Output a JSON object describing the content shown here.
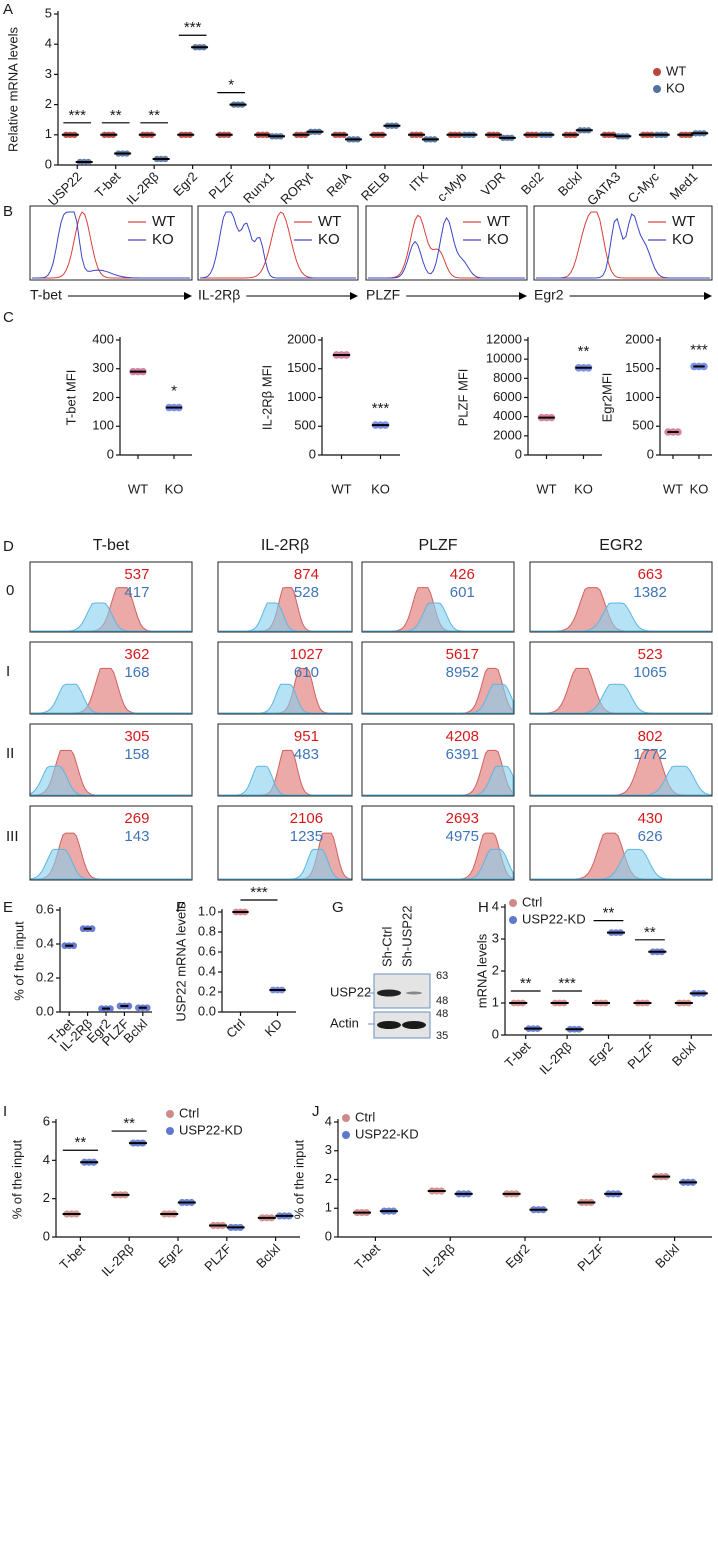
{
  "chart_data": [
    {
      "type": "dot",
      "panel": "A",
      "ylabel": "Relative mRNA levels",
      "categories": [
        "USP22",
        "T-bet",
        "IL-2Rβ",
        "Egr2",
        "PLZF",
        "Runx1",
        "RORγt",
        "RelA",
        "RELB",
        "ITK",
        "c-Myb",
        "VDR",
        "Bcl2",
        "Bclxl",
        "GATA3",
        "C-Myc",
        "Med1"
      ],
      "series": [
        {
          "name": "WT",
          "color": "#b8463f",
          "values": [
            1,
            1,
            1,
            1,
            1,
            1,
            1,
            1,
            1,
            1,
            1,
            1,
            1,
            1,
            1,
            1,
            1
          ]
        },
        {
          "name": "KO",
          "color": "#52739f",
          "values": [
            0.1,
            0.38,
            0.2,
            3.9,
            2.0,
            0.95,
            1.1,
            0.85,
            1.3,
            0.85,
            1.0,
            0.9,
            1.0,
            1.15,
            0.95,
            1.0,
            1.05
          ]
        }
      ],
      "ylim": [
        0,
        5
      ],
      "yticks": [
        0,
        1,
        2,
        3,
        4,
        5
      ],
      "legend": "right",
      "significance_bar": true,
      "annotations": [
        {
          "category": "USP22",
          "label": "***"
        },
        {
          "category": "T-bet",
          "label": "**"
        },
        {
          "category": "IL-2Rβ",
          "label": "**"
        },
        {
          "category": "Egr2",
          "label": "***"
        },
        {
          "category": "PLZF",
          "label": "*"
        }
      ]
    },
    {
      "type": "flow-histogram",
      "panel": "B",
      "x_labels": [
        "T-bet",
        "IL-2Rβ",
        "PLZF",
        "Egr2"
      ],
      "series": [
        {
          "name": "WT",
          "color": "#d9403a"
        },
        {
          "name": "KO",
          "color": "#3a45c8"
        }
      ]
    },
    {
      "type": "dot",
      "panel": "C",
      "ylabel": "T-bet MFI",
      "categories": [
        "WT",
        "KO"
      ],
      "values": [
        290,
        165
      ],
      "colors": [
        "#d2789a",
        "#6f86e3"
      ],
      "ylim": [
        0,
        400
      ],
      "yticks": [
        0,
        100,
        200,
        300,
        400
      ],
      "annotations": [
        {
          "category": "KO",
          "label": "*"
        }
      ]
    },
    {
      "type": "dot",
      "ylabel": "IL-2Rβ MFI",
      "categories": [
        "WT",
        "KO"
      ],
      "values": [
        1740,
        520
      ],
      "colors": [
        "#d2789a",
        "#6f86e3"
      ],
      "ylim": [
        0,
        2000
      ],
      "yticks": [
        0,
        500,
        1000,
        1500,
        2000
      ],
      "annotations": [
        {
          "category": "KO",
          "label": "***"
        }
      ]
    },
    {
      "type": "dot",
      "ylabel": "PLZF MFI",
      "categories": [
        "WT",
        "KO"
      ],
      "values": [
        3900,
        9100
      ],
      "colors": [
        "#d2789a",
        "#6f86e3"
      ],
      "ylim": [
        0,
        12000
      ],
      "yticks": [
        0,
        2000,
        4000,
        6000,
        8000,
        10000,
        12000
      ],
      "annotations": [
        {
          "category": "KO",
          "label": "**"
        }
      ]
    },
    {
      "type": "dot",
      "ylabel": "Egr2MFI",
      "categories": [
        "WT",
        "KO"
      ],
      "values": [
        400,
        1540
      ],
      "colors": [
        "#d2789a",
        "#6f86e3"
      ],
      "ylim": [
        0,
        2000
      ],
      "yticks": [
        0,
        500,
        1000,
        1500,
        2000
      ],
      "annotations": [
        {
          "category": "KO",
          "label": "***"
        }
      ]
    },
    {
      "type": "histogram-grid",
      "panel": "D",
      "columns": [
        "T-bet",
        "IL-2Rβ",
        "PLZF",
        "EGR2"
      ],
      "rows": [
        "0",
        "I",
        "II",
        "III"
      ],
      "series": [
        {
          "color": "#d7191c",
          "values": [
            [
              537,
              362,
              305,
              269
            ],
            [
              874,
              1027,
              951,
              2106
            ],
            [
              426,
              5617,
              4208,
              2693
            ],
            [
              663,
              523,
              802,
              430
            ]
          ]
        },
        {
          "color": "#3f74b8",
          "values": [
            [
              417,
              168,
              158,
              143
            ],
            [
              528,
              610,
              483,
              1235
            ],
            [
              601,
              8952,
              6391,
              4975
            ],
            [
              1382,
              1065,
              1772,
              626
            ]
          ]
        }
      ]
    },
    {
      "type": "dot",
      "panel": "E",
      "ylabel": "% of the input",
      "categories": [
        "T-bet",
        "IL-2Rβ",
        "Egr2",
        "PLZF",
        "Bclxl"
      ],
      "values": [
        0.39,
        0.49,
        0.02,
        0.035,
        0.025
      ],
      "colors": [
        "#5a6fd0",
        "#5a6fd0",
        "#5a6fd0",
        "#5a6fd0",
        "#5a6fd0"
      ],
      "ylim": [
        0,
        0.6
      ],
      "yticks": [
        {
          "value": 0,
          "label": "0.0"
        },
        0.2,
        0.4,
        0.6
      ]
    },
    {
      "type": "dot",
      "panel": "F",
      "ylabel": "USP22 mRNA levels",
      "categories": [
        "Ctrl",
        "KD"
      ],
      "values": [
        1.0,
        0.22
      ],
      "colors": [
        "#d47a86",
        "#6b80dc"
      ],
      "ylim": [
        0,
        1.0
      ],
      "yticks": [
        {
          "value": 0,
          "label": "0.0"
        },
        0.2,
        0.4,
        0.6,
        0.8,
        {
          "value": 1.0,
          "label": "1.0"
        }
      ],
      "significance_bar": true,
      "annotations": [
        {
          "category": "KD",
          "label": "***"
        }
      ]
    },
    {
      "type": "dot",
      "panel": "H",
      "ylabel": "mRNA levels",
      "categories": [
        "T-bet",
        "IL-2Rβ",
        "Egr2",
        "PLZF",
        "Bclxl"
      ],
      "series": [
        {
          "name": "Ctrl",
          "color": "#d08a86",
          "values": [
            1,
            1,
            1,
            1,
            1
          ]
        },
        {
          "name": "USP22-KD",
          "color": "#5f78cf",
          "values": [
            0.2,
            0.18,
            3.2,
            2.6,
            1.3
          ]
        }
      ],
      "ylim": [
        0,
        4
      ],
      "yticks": [
        0,
        1,
        2,
        3,
        4
      ],
      "legend": "upper left",
      "significance_bar": true,
      "annotations": [
        {
          "category": "T-bet",
          "label": "**"
        },
        {
          "category": "IL-2Rβ",
          "label": "***"
        },
        {
          "category": "Egr2",
          "label": "**"
        },
        {
          "category": "PLZF",
          "label": "**"
        }
      ]
    },
    {
      "type": "dot",
      "panel": "I",
      "ylabel": "% of the input",
      "categories": [
        "T-bet",
        "IL-2Rβ",
        "Egr2",
        "PLZF",
        "Bclxl"
      ],
      "series": [
        {
          "name": "Ctrl",
          "color": "#d08a86",
          "values": [
            1.2,
            2.2,
            1.2,
            0.6,
            1.0
          ]
        },
        {
          "name": "USP22-KD",
          "color": "#5f78cf",
          "values": [
            3.9,
            4.9,
            1.8,
            0.5,
            1.1
          ]
        }
      ],
      "ylim": [
        0,
        6
      ],
      "yticks": [
        0,
        2,
        4,
        6
      ],
      "legend": "upper right",
      "significance_bar": true,
      "annotations": [
        {
          "category": "T-bet",
          "label": "**"
        },
        {
          "category": "IL-2Rβ",
          "label": "**"
        }
      ]
    },
    {
      "type": "dot",
      "panel": "J",
      "ylabel": "% of the input",
      "categories": [
        "T-bet",
        "IL-2Rβ",
        "Egr2",
        "PLZF",
        "Bclxl"
      ],
      "series": [
        {
          "name": "Ctrl",
          "color": "#d08a86",
          "values": [
            0.85,
            1.6,
            1.5,
            1.2,
            2.1
          ]
        },
        {
          "name": "USP22-KD",
          "color": "#5f78cf",
          "values": [
            0.9,
            1.5,
            0.95,
            1.5,
            1.9
          ]
        }
      ],
      "ylim": [
        0,
        4
      ],
      "yticks": [
        0,
        1,
        2,
        3,
        4
      ],
      "legend": "upper left"
    }
  ],
  "blot": {
    "panel": "G",
    "lanes": [
      "Sh-Ctrl",
      "Sh-USP22"
    ],
    "proteins": [
      "USP22",
      "Actin"
    ],
    "markers": [
      63,
      48,
      48,
      35
    ]
  }
}
